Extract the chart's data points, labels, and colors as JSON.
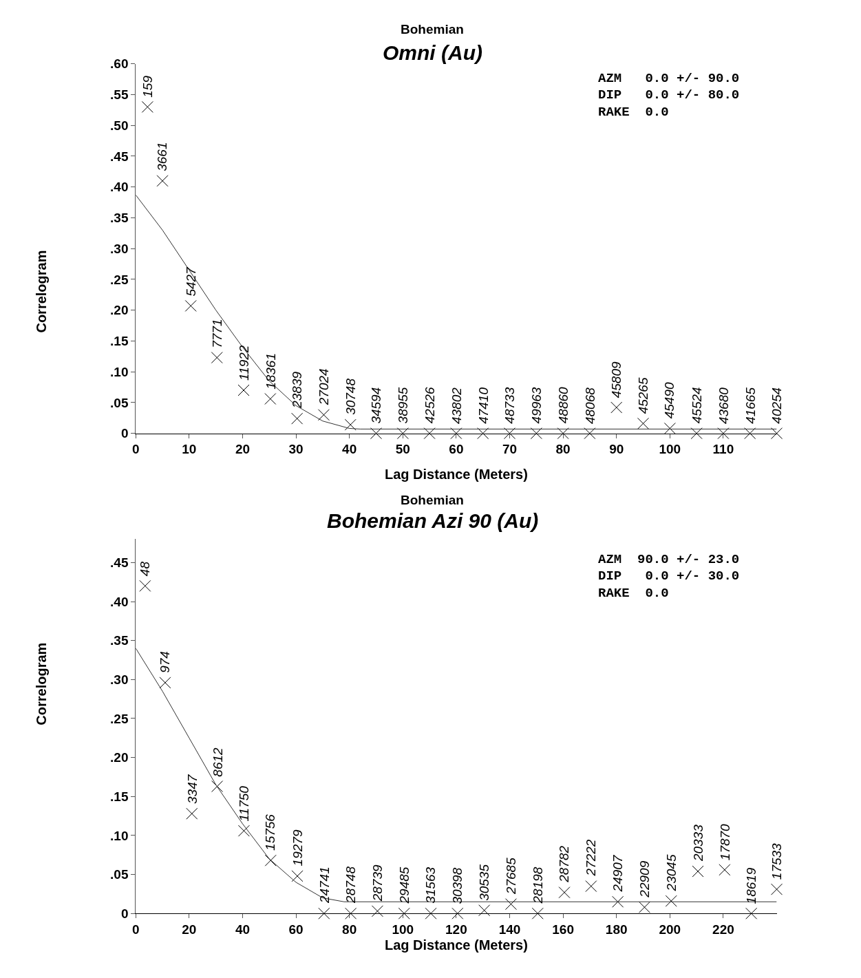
{
  "chart_data": [
    {
      "type": "scatter",
      "subtitle": "Bohemian",
      "title": "Omni (Au)",
      "xlabel": "Lag Distance (Meters)",
      "ylabel": "Correlogram",
      "annotations": [
        "AZM   0.0 +/- 90.0",
        "DIP   0.0 +/- 80.0",
        "RAKE  0.0",
        {
          "text": "159",
          "x": 2.2,
          "y": 0.53
        },
        {
          "text": "3661",
          "x": 5,
          "y": 0.41
        },
        {
          "text": "5427",
          "x": 10.3,
          "y": 0.207
        },
        {
          "text": "7771",
          "x": 15.2,
          "y": 0.123
        },
        {
          "text": "11922",
          "x": 20.2,
          "y": 0.07
        },
        {
          "text": "18361",
          "x": 25.2,
          "y": 0.056
        },
        {
          "text": "23839",
          "x": 30.2,
          "y": 0.024
        },
        {
          "text": "27024",
          "x": 35.2,
          "y": 0.03
        },
        {
          "text": "30748",
          "x": 40.2,
          "y": 0.014
        },
        {
          "text": "34594",
          "x": 45,
          "y": 0
        },
        {
          "text": "38955",
          "x": 50,
          "y": 0
        },
        {
          "text": "42526",
          "x": 55,
          "y": 0
        },
        {
          "text": "43802",
          "x": 60,
          "y": 0
        },
        {
          "text": "47410",
          "x": 65,
          "y": 0
        },
        {
          "text": "48733",
          "x": 70,
          "y": 0
        },
        {
          "text": "49963",
          "x": 75,
          "y": 0
        },
        {
          "text": "48860",
          "x": 80,
          "y": 0
        },
        {
          "text": "48068",
          "x": 85,
          "y": 0
        },
        {
          "text": "45809",
          "x": 90,
          "y": 0.042
        },
        {
          "text": "45265",
          "x": 95,
          "y": 0.016
        },
        {
          "text": "45490",
          "x": 100,
          "y": 0.008
        },
        {
          "text": "45524",
          "x": 105,
          "y": 0
        },
        {
          "text": "43680",
          "x": 110,
          "y": 0
        },
        {
          "text": "41665",
          "x": 115,
          "y": 0
        },
        {
          "text": "40254",
          "x": 120,
          "y": 0
        }
      ],
      "xlim": [
        0,
        120
      ],
      "xticks": [
        0,
        10,
        20,
        30,
        40,
        50,
        60,
        70,
        80,
        90,
        100,
        110
      ],
      "ylim": [
        0,
        0.6
      ],
      "yticks": [
        0,
        {
          "value": 0.05,
          "label": ".05"
        },
        {
          "value": 0.1,
          "label": ".10"
        },
        {
          "value": 0.15,
          "label": ".15"
        },
        {
          "value": 0.2,
          "label": ".20"
        },
        {
          "value": 0.25,
          "label": ".25"
        },
        {
          "value": 0.3,
          "label": ".30"
        },
        {
          "value": 0.35,
          "label": ".35"
        },
        {
          "value": 0.4,
          "label": ".40"
        },
        {
          "value": 0.45,
          "label": ".45"
        },
        {
          "value": 0.5,
          "label": ".50"
        },
        {
          "value": 0.55,
          "label": ".55"
        },
        {
          "value": 0.6,
          "label": ".60"
        }
      ],
      "series": [
        {
          "marker": "cross",
          "color": "#000000",
          "x": [
            2.2,
            5,
            10.3,
            15.2,
            20.2,
            25.2,
            30.2,
            35.2,
            40.2,
            45,
            50,
            55,
            60,
            65,
            70,
            75,
            80,
            85,
            90,
            95,
            100,
            105,
            110,
            115,
            120
          ],
          "values": [
            0.53,
            0.41,
            0.207,
            0.123,
            0.07,
            0.056,
            0.024,
            0.03,
            0.014,
            0,
            0,
            0,
            0,
            0,
            0,
            0,
            0,
            0,
            0.042,
            0.016,
            0.008,
            0,
            0,
            0,
            0
          ]
        },
        {
          "type": "line",
          "marker": "none",
          "color": "#333333",
          "x": [
            0,
            5,
            10,
            15,
            20,
            25,
            30,
            35,
            40,
            42,
            120
          ],
          "values": [
            0.387,
            0.33,
            0.265,
            0.2,
            0.14,
            0.085,
            0.045,
            0.02,
            0.008,
            0.007,
            0.007
          ]
        }
      ]
    },
    {
      "type": "scatter",
      "subtitle": "Bohemian",
      "title": "Bohemian Azi 90 (Au)",
      "xlabel": "Lag Distance (Meters)",
      "ylabel": "Correlogram",
      "annotations": [
        "AZM  90.0 +/- 23.0",
        "DIP   0.0 +/- 30.0",
        "RAKE  0.0",
        {
          "text": "48",
          "x": 3.5,
          "y": 0.42
        },
        {
          "text": "974",
          "x": 11,
          "y": 0.296
        },
        {
          "text": "3347",
          "x": 21,
          "y": 0.128
        },
        {
          "text": "8612",
          "x": 30.5,
          "y": 0.163
        },
        {
          "text": "11750",
          "x": 40.5,
          "y": 0.106
        },
        {
          "text": "15756",
          "x": 50.5,
          "y": 0.068
        },
        {
          "text": "19279",
          "x": 60.5,
          "y": 0.048
        },
        {
          "text": "24741",
          "x": 70.5,
          "y": 0
        },
        {
          "text": "28748",
          "x": 80.5,
          "y": 0
        },
        {
          "text": "28739",
          "x": 90.5,
          "y": 0.003
        },
        {
          "text": "29485",
          "x": 100.5,
          "y": 0
        },
        {
          "text": "31563",
          "x": 110.5,
          "y": 0
        },
        {
          "text": "30398",
          "x": 120.5,
          "y": 0
        },
        {
          "text": "30535",
          "x": 130.5,
          "y": 0.004
        },
        {
          "text": "27685",
          "x": 140.5,
          "y": 0.012
        },
        {
          "text": "28198",
          "x": 150.5,
          "y": 0
        },
        {
          "text": "28782",
          "x": 160.5,
          "y": 0.027
        },
        {
          "text": "27222",
          "x": 170.5,
          "y": 0.035
        },
        {
          "text": "24907",
          "x": 180.5,
          "y": 0.015
        },
        {
          "text": "22909",
          "x": 190.5,
          "y": 0.008
        },
        {
          "text": "23045",
          "x": 200.5,
          "y": 0.016
        },
        {
          "text": "20333",
          "x": 210.5,
          "y": 0.054
        },
        {
          "text": "17870",
          "x": 220.5,
          "y": 0.056
        },
        {
          "text": "18619",
          "x": 230.5,
          "y": 0
        },
        {
          "text": "17533",
          "x": 240,
          "y": 0.031
        }
      ],
      "xlim": [
        0,
        240
      ],
      "xticks": [
        0,
        20,
        40,
        60,
        80,
        100,
        120,
        140,
        160,
        180,
        200,
        220
      ],
      "ylim": [
        0,
        0.48
      ],
      "yticks": [
        0,
        {
          "value": 0.05,
          "label": ".05"
        },
        {
          "value": 0.1,
          "label": ".10"
        },
        {
          "value": 0.15,
          "label": ".15"
        },
        {
          "value": 0.2,
          "label": ".20"
        },
        {
          "value": 0.25,
          "label": ".25"
        },
        {
          "value": 0.3,
          "label": ".30"
        },
        {
          "value": 0.35,
          "label": ".35"
        },
        {
          "value": 0.4,
          "label": ".40"
        },
        {
          "value": 0.45,
          "label": ".45"
        }
      ],
      "series": [
        {
          "marker": "cross",
          "color": "#000000",
          "x": [
            3.5,
            11,
            21,
            30.5,
            40.5,
            50.5,
            60.5,
            70.5,
            80.5,
            90.5,
            100.5,
            110.5,
            120.5,
            130.5,
            140.5,
            150.5,
            160.5,
            170.5,
            180.5,
            190.5,
            200.5,
            210.5,
            220.5,
            230.5,
            240
          ],
          "values": [
            0.42,
            0.296,
            0.128,
            0.163,
            0.106,
            0.068,
            0.048,
            0,
            0,
            0.003,
            0,
            0,
            0,
            0.004,
            0.012,
            0,
            0.027,
            0.035,
            0.015,
            0.008,
            0.016,
            0.054,
            0.056,
            0,
            0.031
          ]
        },
        {
          "type": "line",
          "marker": "none",
          "color": "#333333",
          "x": [
            0,
            10,
            20,
            30,
            40,
            50,
            60,
            70,
            78,
            240
          ],
          "values": [
            0.34,
            0.285,
            0.225,
            0.165,
            0.115,
            0.07,
            0.04,
            0.02,
            0.015,
            0.015
          ]
        }
      ]
    }
  ]
}
